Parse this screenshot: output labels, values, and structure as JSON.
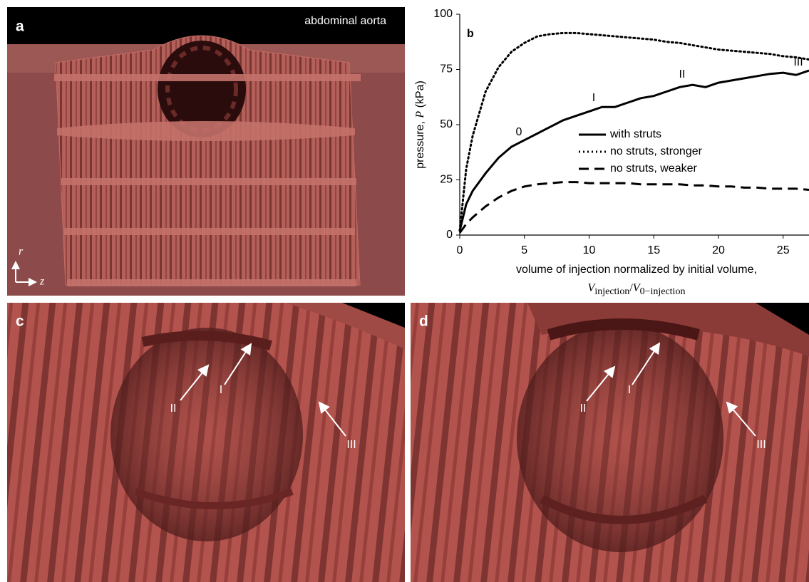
{
  "panels": {
    "a": {
      "label": "a",
      "caption": "abdominal aorta",
      "axis_r": "r",
      "axis_z": "z"
    },
    "c": {
      "label": "c",
      "arrow_labels": [
        "II",
        "I",
        "III"
      ]
    },
    "d": {
      "label": "d",
      "arrow_labels": [
        "II",
        "I",
        "III"
      ]
    }
  },
  "chart_data": {
    "type": "line",
    "panel_label": "b",
    "ylabel": {
      "pre": "pressure, ",
      "var": "P",
      "post": " (kPa)"
    },
    "xlabel": "volume of injection normalized by initial volume,",
    "xlabel_formula": {
      "v1": "V",
      "sub1": "injection",
      "slash": "/",
      "v2": "V",
      "sub2": "0−injection"
    },
    "x": [
      0,
      0.5,
      1,
      2,
      3,
      4,
      5,
      6,
      7,
      8,
      9,
      10,
      11,
      12,
      13,
      14,
      15,
      16,
      17,
      18,
      19,
      20,
      21,
      22,
      23,
      24,
      25,
      26,
      27
    ],
    "series": [
      {
        "name": "with struts",
        "color": "#000000",
        "dash": "solid",
        "values": [
          2,
          14,
          20,
          28,
          35,
          40,
          43,
          46,
          49,
          52,
          54,
          56,
          58,
          58,
          60,
          62,
          63,
          65,
          67,
          68,
          67,
          69,
          70,
          71,
          72,
          73,
          73.5,
          72.5,
          74.5
        ]
      },
      {
        "name": "no struts, stronger",
        "color": "#000000",
        "dash": "dotted",
        "values": [
          2,
          30,
          45,
          65,
          76,
          83,
          87,
          90,
          91,
          91.5,
          91.5,
          91,
          90.5,
          90,
          89.5,
          89,
          88.5,
          87.5,
          87,
          86,
          85,
          84,
          83.5,
          83,
          82.5,
          82,
          81,
          80.5,
          79.5
        ]
      },
      {
        "name": "no struts, weaker",
        "color": "#000000",
        "dash": "dashed",
        "values": [
          1,
          5,
          8,
          13,
          17,
          20,
          22,
          23,
          23.5,
          24,
          24,
          23.5,
          23.5,
          23.5,
          23.5,
          23,
          23,
          23,
          23,
          22.5,
          22.5,
          22,
          22,
          21.5,
          21.5,
          21,
          21,
          21,
          20.5
        ]
      }
    ],
    "annotations": [
      "0",
      "I",
      "II",
      "III"
    ],
    "xlim": [
      0,
      27
    ],
    "ylim": [
      0,
      100
    ],
    "xticks": [
      0,
      5,
      10,
      15,
      20,
      25
    ],
    "yticks": [
      0,
      25,
      50,
      75,
      100
    ],
    "grid": false,
    "legend": "center"
  }
}
